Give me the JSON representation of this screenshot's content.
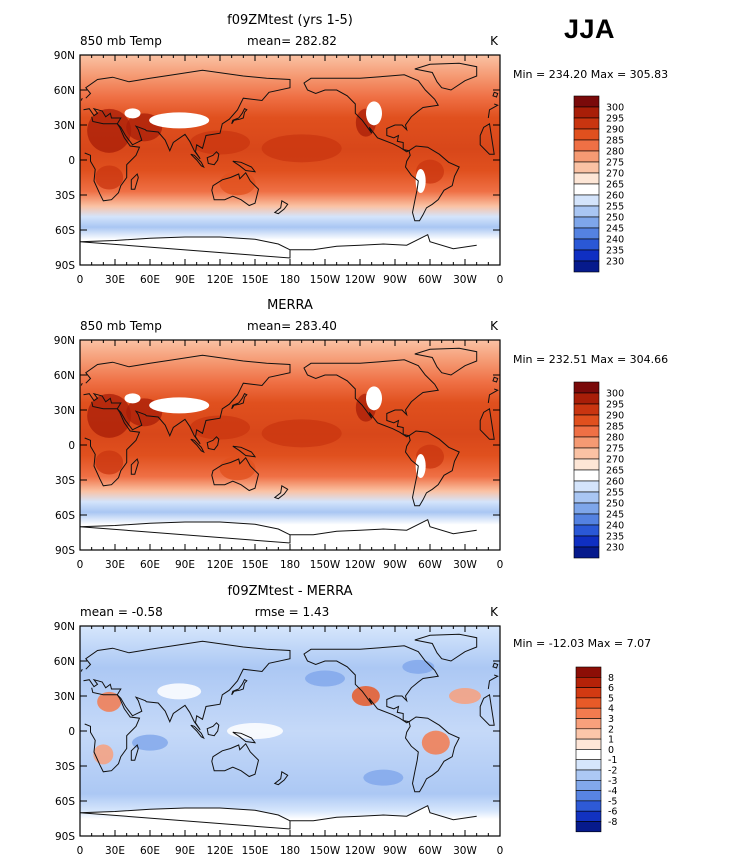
{
  "season": "JJA",
  "lat_ticks": [
    "90N",
    "60N",
    "30N",
    "0",
    "30S",
    "60S",
    "90S"
  ],
  "lon_ticks": [
    "0",
    "30E",
    "60E",
    "90E",
    "120E",
    "150E",
    "180",
    "150W",
    "120W",
    "90W",
    "60W",
    "30W",
    "0"
  ],
  "chart_data": [
    {
      "type": "heatmap",
      "title": "f09ZMtest (yrs 1-5)",
      "left_label": "850 mb Temp",
      "center_label": "mean= 282.82",
      "units": "K",
      "stats": "Min = 234.20 Max = 305.83",
      "colorbar": {
        "levels": [
          "300",
          "295",
          "290",
          "285",
          "280",
          "275",
          "270",
          "265",
          "260",
          "255",
          "250",
          "245",
          "240",
          "235",
          "230"
        ],
        "colors": [
          "#7a0a0a",
          "#a81e08",
          "#c93510",
          "#e0501e",
          "#ef7045",
          "#f59a73",
          "#fac2a4",
          "#fde6d6",
          "#ffffff",
          "#d4e4fb",
          "#a9c6f3",
          "#7ea6ea",
          "#5482e1",
          "#2a58d6",
          "#0f2fc2",
          "#061a8c"
        ]
      }
    },
    {
      "type": "heatmap",
      "title": "MERRA",
      "left_label": "850 mb Temp",
      "center_label": "mean= 283.40",
      "units": "K",
      "stats": "Min = 232.51 Max = 304.66",
      "colorbar": {
        "levels": [
          "300",
          "295",
          "290",
          "285",
          "280",
          "275",
          "270",
          "265",
          "260",
          "255",
          "250",
          "245",
          "240",
          "235",
          "230"
        ],
        "colors": [
          "#7a0a0a",
          "#a81e08",
          "#c93510",
          "#e0501e",
          "#ef7045",
          "#f59a73",
          "#fac2a4",
          "#fde6d6",
          "#ffffff",
          "#d4e4fb",
          "#a9c6f3",
          "#7ea6ea",
          "#5482e1",
          "#2a58d6",
          "#0f2fc2",
          "#061a8c"
        ]
      }
    },
    {
      "type": "heatmap",
      "title": "f09ZMtest - MERRA",
      "left_label": "mean =   -0.58",
      "center_label": "rmse =    1.43",
      "units": "K",
      "stats": "Min = -12.03 Max =    7.07",
      "colorbar": {
        "levels": [
          "8",
          "6",
          "5",
          "4",
          "3",
          "2",
          "1",
          "0",
          "-1",
          "-2",
          "-3",
          "-4",
          "-5",
          "-6",
          "-8"
        ],
        "colors": [
          "#8c0e06",
          "#b42208",
          "#d23a12",
          "#e85a28",
          "#f37b4f",
          "#f8a07c",
          "#fcc6aa",
          "#fee6d8",
          "#ffffff",
          "#d6e6fc",
          "#acc8f4",
          "#82a8eb",
          "#5884e2",
          "#2e5ad6",
          "#1232c0",
          "#061a8c"
        ]
      }
    }
  ]
}
